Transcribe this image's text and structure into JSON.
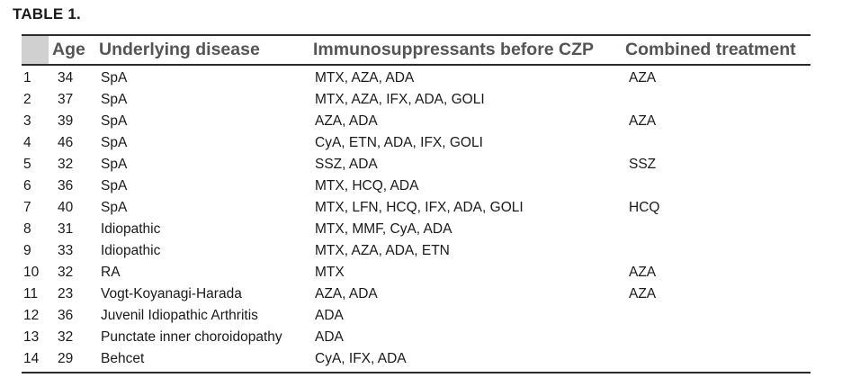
{
  "title": "TABLE 1.",
  "headers": {
    "number": "",
    "age": "Age",
    "disease": "Underlying disease",
    "immuno": "Immunosuppressants before CZP",
    "combined": "Combined treatment"
  },
  "rows": [
    {
      "n": "1",
      "age": "34",
      "disease": "SpA",
      "immuno": "MTX, AZA, ADA",
      "combined": "AZA"
    },
    {
      "n": "2",
      "age": "37",
      "disease": "SpA",
      "immuno": "MTX, AZA, IFX, ADA, GOLI",
      "combined": ""
    },
    {
      "n": "3",
      "age": "39",
      "disease": "SpA",
      "immuno": "AZA, ADA",
      "combined": "AZA"
    },
    {
      "n": "4",
      "age": "46",
      "disease": "SpA",
      "immuno": "CyA, ETN, ADA, IFX, GOLI",
      "combined": ""
    },
    {
      "n": "5",
      "age": "32",
      "disease": "SpA",
      "immuno": "SSZ, ADA",
      "combined": "SSZ"
    },
    {
      "n": "6",
      "age": "36",
      "disease": "SpA",
      "immuno": "MTX, HCQ, ADA",
      "combined": ""
    },
    {
      "n": "7",
      "age": "40",
      "disease": "SpA",
      "immuno": "MTX, LFN, HCQ, IFX, ADA, GOLI",
      "combined": "HCQ"
    },
    {
      "n": "8",
      "age": "31",
      "disease": "Idiopathic",
      "immuno": "MTX, MMF, CyA, ADA",
      "combined": ""
    },
    {
      "n": "9",
      "age": "33",
      "disease": "Idiopathic",
      "immuno": "MTX, AZA, ADA, ETN",
      "combined": ""
    },
    {
      "n": "10",
      "age": "32",
      "disease": "RA",
      "immuno": "MTX",
      "combined": "AZA"
    },
    {
      "n": "11",
      "age": "23",
      "disease": "Vogt-Koyanagi-Harada",
      "immuno": "AZA, ADA",
      "combined": "AZA"
    },
    {
      "n": "12",
      "age": "36",
      "disease": "Juvenil Idiopathic Arthritis",
      "immuno": "ADA",
      "combined": ""
    },
    {
      "n": "13",
      "age": "32",
      "disease": "Punctate inner choroidopathy",
      "immuno": "ADA",
      "combined": ""
    },
    {
      "n": "14",
      "age": "29",
      "disease": "Behcet",
      "immuno": "CyA, IFX, ADA",
      "combined": ""
    }
  ]
}
